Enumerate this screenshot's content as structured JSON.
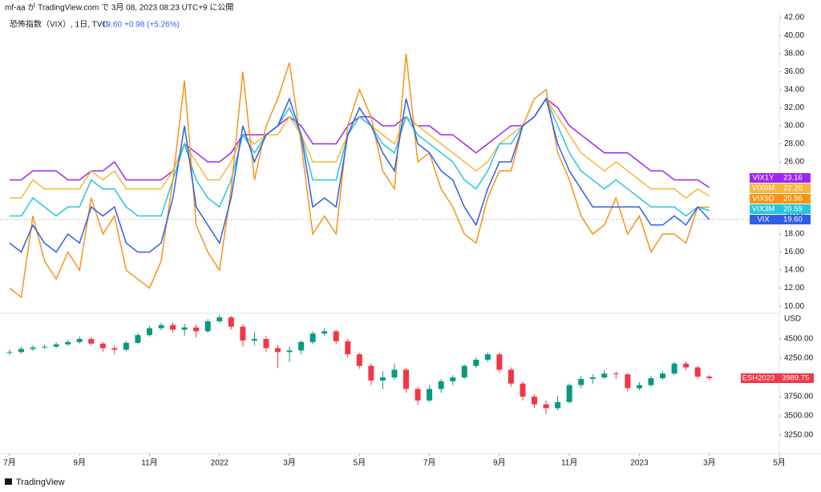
{
  "header": {
    "published": "mf-aa が TradingView.com で 3月 08, 2023 08:23 UTC+9 に公開"
  },
  "legend": {
    "symbol": "恐怖指数（VIX）, 1日, TVC",
    "last": "19.60",
    "change": "+0.98 (+5.26%)"
  },
  "footer": {
    "brand": "TradingView"
  },
  "chart_data": [
    {
      "type": "line",
      "xlim": [
        -0.82,
        66
      ],
      "xticks": [
        {
          "value": 0,
          "label": "7月"
        },
        {
          "value": 6,
          "label": "9月"
        },
        {
          "value": 12,
          "label": "11月"
        },
        {
          "value": 18,
          "label": "2022"
        },
        {
          "value": 24,
          "label": "3月"
        },
        {
          "value": 30,
          "label": "5月"
        },
        {
          "value": 36,
          "label": "7月"
        },
        {
          "value": 42,
          "label": "9月"
        },
        {
          "value": 48,
          "label": "11月"
        },
        {
          "value": 54,
          "label": "2023"
        },
        {
          "value": 60,
          "label": "3月"
        },
        {
          "value": 66,
          "label": "5月"
        }
      ],
      "ylim": [
        9.3,
        42.7
      ],
      "yticks": [
        {
          "value": 10,
          "label": "10.00"
        },
        {
          "value": 12,
          "label": "12.00"
        },
        {
          "value": 14,
          "label": "14.00"
        },
        {
          "value": 16,
          "label": "16.00"
        },
        {
          "value": 18,
          "label": "18.00"
        },
        {
          "value": 20,
          "label": "20.00"
        },
        {
          "value": 22,
          "label": "22.00"
        },
        {
          "value": 24,
          "label": "24.00"
        },
        {
          "value": 26,
          "label": "26.00"
        },
        {
          "value": 28,
          "label": "28.00"
        },
        {
          "value": 30,
          "label": "30.00"
        },
        {
          "value": 32,
          "label": "32.00"
        },
        {
          "value": 34,
          "label": "34.00"
        },
        {
          "value": 36,
          "label": "36.00"
        },
        {
          "value": 38,
          "label": "38.00"
        },
        {
          "value": 40,
          "label": "40.00"
        },
        {
          "value": 42,
          "label": "42.00"
        }
      ],
      "grid": false,
      "series": [
        {
          "name": "VIX1Y",
          "color": "#9c27f0",
          "values": [
            24,
            24,
            25,
            25,
            25,
            24,
            24,
            25,
            25,
            26,
            24,
            24,
            24,
            24,
            25,
            28,
            27,
            26,
            26,
            27,
            29,
            29,
            29,
            30,
            31,
            30,
            28,
            28,
            28,
            30,
            31,
            31,
            30,
            30,
            31,
            30,
            30,
            29,
            29,
            28,
            27,
            28,
            29,
            30,
            30,
            31,
            33,
            32,
            30,
            29,
            28,
            27,
            27,
            27,
            26,
            25,
            25,
            24,
            24,
            24,
            23.16
          ]
        },
        {
          "name": "VIX6M",
          "color": "#f9b43a",
          "values": [
            22,
            22,
            24,
            23,
            23,
            23,
            23,
            25,
            24,
            25,
            23,
            23,
            23,
            23,
            25,
            28,
            26,
            24,
            24,
            26,
            29,
            28,
            29,
            29,
            31,
            29,
            26,
            26,
            26,
            29,
            31,
            30,
            29,
            28,
            31,
            30,
            29,
            28,
            27,
            26,
            25,
            26,
            28,
            29,
            30,
            31,
            33,
            31,
            29,
            27,
            26,
            25,
            26,
            25,
            24,
            23,
            23,
            23,
            22,
            23,
            22.2
          ],
          "value_labels": [
            null,
            null,
            null,
            null,
            null,
            null,
            null,
            null,
            null,
            null,
            null,
            null,
            null,
            null,
            null,
            null,
            null,
            null,
            null,
            null,
            null,
            null,
            null,
            null,
            null,
            null,
            null,
            null,
            null,
            null,
            null,
            null,
            null,
            null,
            null,
            null,
            null,
            null,
            null,
            null,
            null,
            null,
            null,
            null,
            null,
            null,
            null,
            null,
            null,
            null,
            null,
            null,
            null,
            null,
            null,
            null,
            null,
            null,
            null,
            null,
            "22.20"
          ]
        },
        {
          "name": "VIX3M",
          "color": "#26c6da",
          "values": [
            20,
            20,
            22,
            21,
            20,
            21,
            21,
            24,
            23,
            23,
            21,
            20,
            20,
            20,
            24,
            28,
            24,
            22,
            21,
            24,
            29,
            27,
            29,
            30,
            32,
            29,
            24,
            24,
            24,
            29,
            31,
            30,
            28,
            27,
            31,
            29,
            28,
            27,
            26,
            24,
            23,
            25,
            28,
            28,
            30,
            31,
            33,
            30,
            27,
            25,
            24,
            23,
            24,
            23,
            22,
            21,
            21,
            21,
            20,
            21,
            20.59
          ]
        },
        {
          "name": "VIX9D",
          "color": "#f7931a",
          "values": [
            12,
            11,
            20,
            15,
            13,
            16,
            14,
            22,
            18,
            20,
            14,
            13,
            12,
            15,
            24,
            35,
            19,
            16,
            14,
            23,
            36,
            24,
            30,
            33,
            37,
            28,
            18,
            20,
            18,
            30,
            34,
            31,
            25,
            23,
            38,
            26,
            27,
            23,
            21,
            18,
            17,
            22,
            25,
            25,
            30,
            33,
            34,
            27,
            24,
            20,
            18,
            19,
            22,
            18,
            20,
            16,
            18,
            18,
            17,
            21,
            20.96
          ]
        },
        {
          "name": "VIX",
          "color": "#2f5fe8",
          "values": [
            17,
            16,
            19,
            17,
            16,
            18,
            17,
            21,
            20,
            21,
            17,
            16,
            16,
            17,
            22,
            30,
            21,
            19,
            17,
            22,
            30,
            26,
            29,
            30,
            33,
            29,
            21,
            22,
            21,
            29,
            32,
            30,
            27,
            25,
            33,
            28,
            27,
            25,
            24,
            21,
            19,
            23,
            26,
            26,
            30,
            31,
            33,
            28,
            25,
            23,
            21,
            21,
            21,
            21,
            21,
            19,
            19,
            20,
            19,
            21,
            19.6
          ],
          "value_labels": [
            null,
            null,
            null,
            null,
            null,
            null,
            null,
            null,
            null,
            null,
            null,
            null,
            null,
            null,
            null,
            null,
            null,
            null,
            null,
            null,
            null,
            null,
            null,
            null,
            null,
            null,
            null,
            null,
            null,
            null,
            null,
            null,
            null,
            null,
            null,
            null,
            null,
            null,
            null,
            null,
            null,
            null,
            null,
            null,
            null,
            null,
            null,
            null,
            null,
            null,
            null,
            null,
            null,
            null,
            null,
            null,
            null,
            null,
            null,
            null,
            "19.60"
          ]
        }
      ]
    },
    {
      "type": "candlestick",
      "xlim": [
        -0.82,
        66
      ],
      "ylim": [
        3021,
        4823
      ],
      "y_label": "USD",
      "yticks": [
        {
          "value": 3250,
          "label": "3250.00"
        },
        {
          "value": 3500,
          "label": "3500.00"
        },
        {
          "value": 3750,
          "label": "3750.00"
        },
        {
          "value": 4000,
          "label": "4000.00"
        },
        {
          "value": 4250,
          "label": "4250.00"
        },
        {
          "value": 4500,
          "label": "4500.00"
        }
      ],
      "series": [
        {
          "name": "ESH2023",
          "color_up": "#089981",
          "color_down": "#f23645",
          "open": [
            4320,
            4330,
            4370,
            4390,
            4400,
            4430,
            4460,
            4500,
            4440,
            4380,
            4360,
            4450,
            4550,
            4640,
            4680,
            4620,
            4650,
            4600,
            4730,
            4780,
            4660,
            4480,
            4500,
            4380,
            4330,
            4350,
            4460,
            4570,
            4600,
            4470,
            4300,
            4150,
            3960,
            4000,
            4100,
            3850,
            3700,
            3850,
            3950,
            4000,
            4150,
            4230,
            4300,
            4100,
            3920,
            3750,
            3650,
            3600,
            3680,
            3900,
            3980,
            4000,
            4050,
            4040,
            3860,
            3900,
            3990,
            4050,
            4180,
            4130,
            4010
          ],
          "high": [
            4360,
            4395,
            4420,
            4425,
            4455,
            4485,
            4530,
            4525,
            4460,
            4410,
            4475,
            4575,
            4665,
            4710,
            4710,
            4700,
            4690,
            4760,
            4815,
            4800,
            4690,
            4590,
            4540,
            4420,
            4400,
            4480,
            4600,
            4640,
            4620,
            4500,
            4320,
            4180,
            4080,
            4180,
            4120,
            3880,
            3900,
            3980,
            4030,
            4170,
            4260,
            4330,
            4320,
            4130,
            3950,
            3780,
            3700,
            3760,
            3920,
            4020,
            4040,
            4100,
            4080,
            4060,
            3940,
            4020,
            4080,
            4200,
            4210,
            4150,
            4030
          ],
          "low": [
            4290,
            4310,
            4345,
            4370,
            4380,
            4410,
            4440,
            4410,
            4330,
            4300,
            4340,
            4430,
            4530,
            4615,
            4580,
            4540,
            4520,
            4580,
            4710,
            4620,
            4400,
            4420,
            4330,
            4120,
            4200,
            4300,
            4430,
            4540,
            4430,
            4260,
            4110,
            3900,
            3850,
            3970,
            3800,
            3640,
            3680,
            3800,
            3900,
            3980,
            4120,
            4200,
            4060,
            3880,
            3700,
            3600,
            3520,
            3570,
            3660,
            3860,
            3920,
            3980,
            3980,
            3820,
            3830,
            3880,
            3970,
            4030,
            4090,
            3980,
            3960
          ],
          "close": [
            4330,
            4370,
            4390,
            4400,
            4430,
            4460,
            4500,
            4440,
            4380,
            4360,
            4450,
            4550,
            4640,
            4680,
            4620,
            4650,
            4600,
            4730,
            4780,
            4660,
            4480,
            4500,
            4380,
            4330,
            4350,
            4460,
            4570,
            4600,
            4470,
            4300,
            4150,
            3960,
            4000,
            4100,
            3850,
            3700,
            3850,
            3950,
            4000,
            4150,
            4230,
            4300,
            4100,
            3920,
            3750,
            3650,
            3600,
            3680,
            3900,
            3980,
            4000,
            4050,
            4040,
            3860,
            3900,
            3990,
            4050,
            4180,
            4130,
            4010,
            3989.75
          ]
        }
      ]
    }
  ]
}
